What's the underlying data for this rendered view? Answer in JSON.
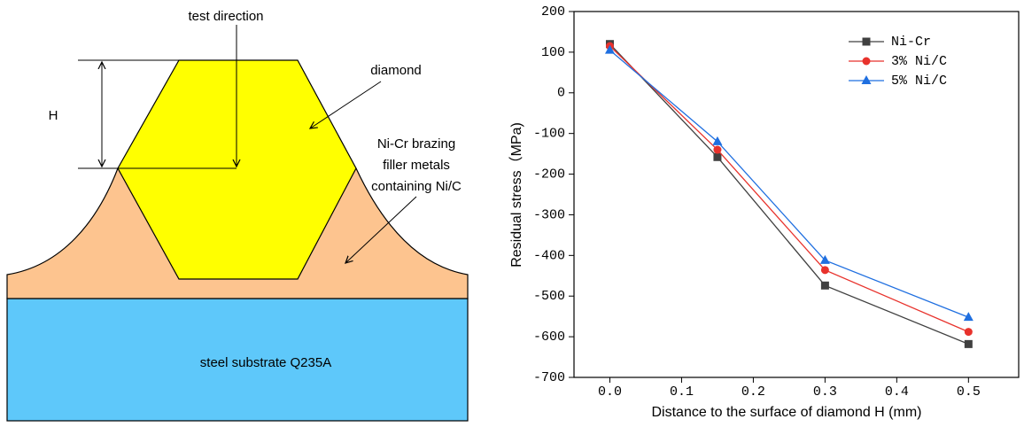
{
  "diagram": {
    "test_direction": "test direction",
    "height_label": "H",
    "diamond": "diamond",
    "filler": [
      "Ni-Cr brazing",
      "filler metals",
      "containing Ni/C"
    ],
    "substrate": "steel substrate Q235A"
  },
  "chart_data": {
    "type": "line",
    "x_label": "Distance to the surface of diamond  H  (mm)",
    "y_label": "Residual stress（MPa)",
    "xlim": [
      -0.05,
      0.57
    ],
    "ylim": [
      -700,
      200
    ],
    "xticks": [
      {
        "value": 0,
        "label": "0.0"
      },
      0.1,
      0.2,
      0.3,
      0.4,
      0.5
    ],
    "yticks": [
      -700,
      -600,
      -500,
      -400,
      -300,
      -200,
      -100,
      0,
      100,
      200
    ],
    "x": [
      0,
      0.15,
      0.3,
      0.5
    ],
    "legend": "upper right",
    "series": [
      {
        "name": "Ni-Cr",
        "color": "#404040",
        "marker": "square",
        "values": [
          120,
          -158,
          -474,
          -618
        ]
      },
      {
        "name": "3% Ni/C",
        "color": "#e8322c",
        "marker": "circle",
        "values": [
          115,
          -140,
          -436,
          -588
        ]
      },
      {
        "name": "5% Ni/C",
        "color": "#1f6fe0",
        "marker": "triangle",
        "values": [
          105,
          -120,
          -412,
          -552
        ]
      }
    ]
  }
}
